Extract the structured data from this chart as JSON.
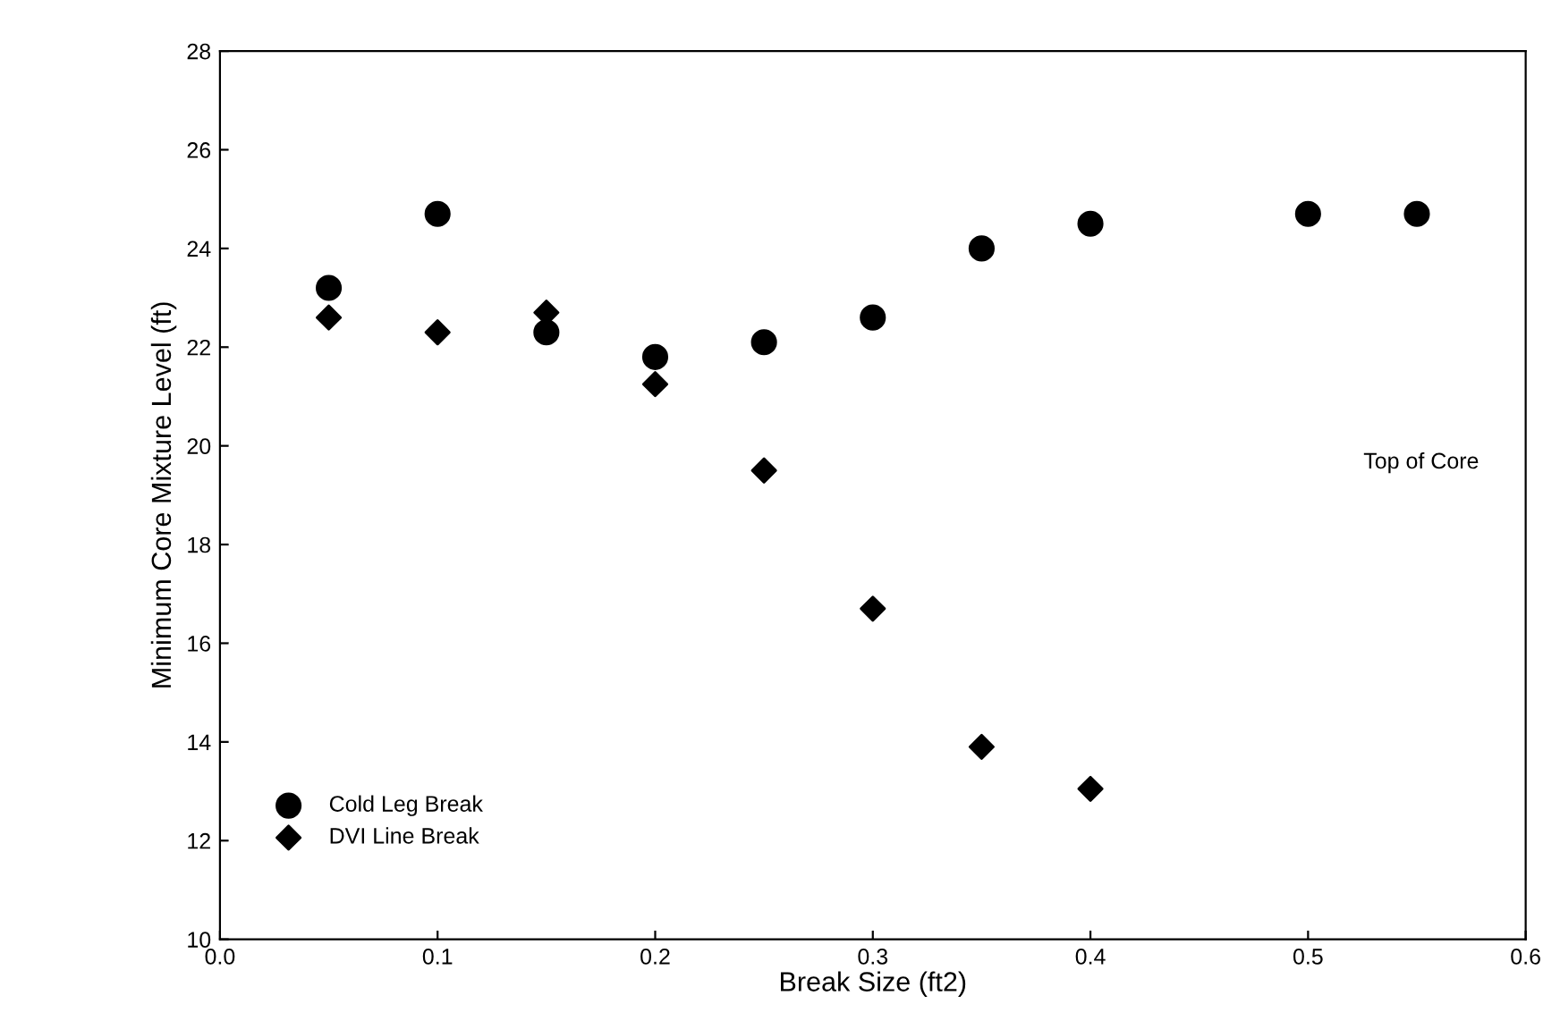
{
  "chart_data": {
    "type": "scatter",
    "xlabel": "Break Size (ft2)",
    "ylabel": "Minimum Core Mixture Level (ft)",
    "annotations": [
      "Top of Core"
    ],
    "xlim": [
      0,
      0.6
    ],
    "xticks": [
      {
        "value": 0,
        "label": "0.0"
      },
      0.1,
      0.2,
      0.3,
      0.4,
      0.5,
      0.6
    ],
    "ylim": [
      10,
      28
    ],
    "yticks": [
      10,
      12,
      14,
      16,
      18,
      20,
      22,
      24,
      26,
      28
    ],
    "grid": false,
    "legend": "bottom left",
    "series": [
      {
        "name": "Cold Leg Break",
        "color": "#000000",
        "marker": "circle",
        "x": [
          0.05,
          0.1,
          0.15,
          0.2,
          0.25,
          0.3,
          0.35,
          0.4,
          0.5,
          0.55
        ],
        "values": [
          23.2,
          24.7,
          22.3,
          21.8,
          22.1,
          22.6,
          24.0,
          24.5,
          24.7,
          24.7
        ]
      },
      {
        "name": "DVI Line Break",
        "color": "#000000",
        "marker": "diamond",
        "x": [
          0.05,
          0.1,
          0.15,
          0.2,
          0.25,
          0.3,
          0.35,
          0.4
        ],
        "values": [
          22.6,
          22.3,
          22.7,
          21.25,
          19.5,
          16.7,
          13.9,
          13.05
        ]
      }
    ]
  }
}
